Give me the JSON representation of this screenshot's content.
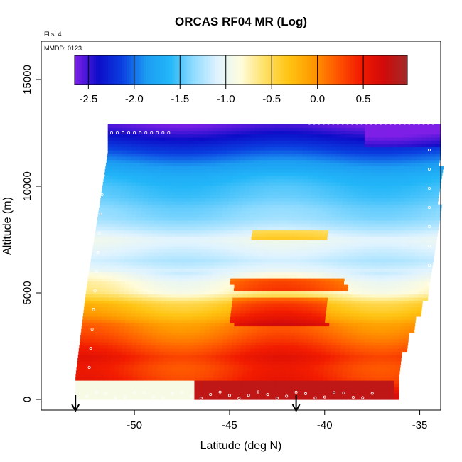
{
  "chart_data": {
    "type": "heatmap",
    "title": "ORCAS RF04 MR (Log)",
    "annotations": [
      "Flts: 4",
      "MMDD: 0123"
    ],
    "xlabel": "Latitude (deg N)",
    "ylabel": "Altitude (m)",
    "xlim": [
      -54.9,
      -33.9
    ],
    "ylim": [
      -500,
      16800
    ],
    "x_ticks": [
      -50,
      -45,
      -40,
      -35
    ],
    "x_tick_labels": [
      "-50",
      "-45",
      "-40",
      "-35"
    ],
    "y_ticks": [
      0,
      5000,
      10000,
      15000
    ],
    "y_tick_labels": [
      "0",
      "5000",
      "10000",
      "15000"
    ],
    "colorbar": {
      "range": [
        -2.65,
        0.98
      ],
      "ticks": [
        -2.5,
        -2.0,
        -1.5,
        -1.0,
        -0.5,
        0.0,
        0.5
      ],
      "tick_labels": [
        "-2.5",
        "-2.0",
        "-1.5",
        "-1.0",
        "-0.5",
        "0.0",
        "0.5"
      ],
      "colors": [
        "#7e1fe6",
        "#0d0dc8",
        "#0a3fe0",
        "#1c9cf2",
        "#22b6f8",
        "#8fdbff",
        "#dff3ff",
        "#fffcdc",
        "#ffe066",
        "#ffc413",
        "#ff9a00",
        "#ff5a00",
        "#f21c00",
        "#d20a0a",
        "#a02a2a"
      ]
    },
    "flight_markers_lat": [
      -53.1,
      -41.5
    ],
    "profiles": [
      {
        "alt": 200,
        "value": 0.8
      },
      {
        "alt": 600,
        "value": 0.55
      },
      {
        "alt": 1000,
        "value": 0.4
      },
      {
        "alt": 1500,
        "value": 0.35
      },
      {
        "alt": 2000,
        "value": 0.45
      },
      {
        "alt": 2500,
        "value": 0.3
      },
      {
        "alt": 3000,
        "value": 0.15
      },
      {
        "alt": 3500,
        "value": 0.05
      },
      {
        "alt": 4000,
        "value": -0.2
      },
      {
        "alt": 4500,
        "value": -0.35
      },
      {
        "alt": 5000,
        "value": -0.75
      },
      {
        "alt": 5500,
        "value": -0.85
      },
      {
        "alt": 6000,
        "value": -1.05
      },
      {
        "alt": 6500,
        "value": -1.2
      },
      {
        "alt": 7000,
        "value": -1.1
      },
      {
        "alt": 7500,
        "value": -1.0
      },
      {
        "alt": 8000,
        "value": -1.2
      },
      {
        "alt": 8500,
        "value": -1.35
      },
      {
        "alt": 9000,
        "value": -1.4
      },
      {
        "alt": 9500,
        "value": -1.5
      },
      {
        "alt": 10000,
        "value": -1.55
      },
      {
        "alt": 10500,
        "value": -1.65
      },
      {
        "alt": 11000,
        "value": -1.85
      },
      {
        "alt": 11500,
        "value": -2.05
      },
      {
        "alt": 12000,
        "value": -2.25
      },
      {
        "alt": 12500,
        "value": -2.45
      },
      {
        "alt": 12900,
        "value": -2.6
      }
    ]
  }
}
